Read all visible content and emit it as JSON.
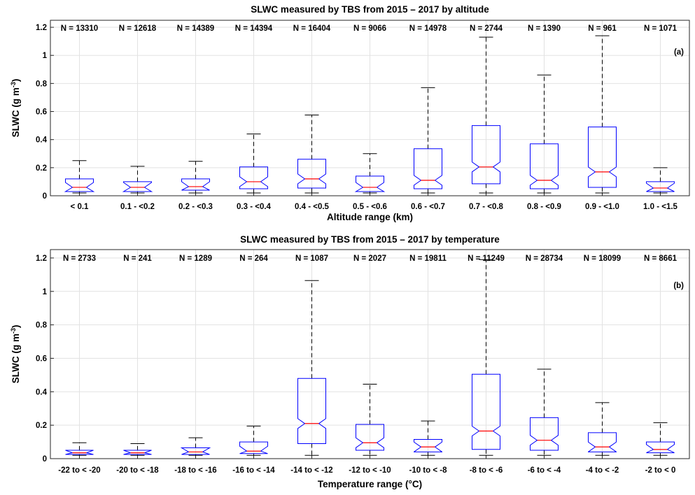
{
  "chart_data": [
    {
      "type": "box",
      "title": "SLWC measured by TBS from 2015 – 2017 by altitude",
      "xlabel": "Altitude range (km)",
      "ylabel": "SLWC (g m<sup>-3</sup>)",
      "ylabel_main": "SLWC (g m",
      "ylabel_sup": "-3",
      "ylabel_close": ")",
      "panel_label": "(a)",
      "ylim": [
        0,
        1.25
      ],
      "yticks": [
        0,
        0.2,
        0.4,
        0.6,
        0.8,
        1,
        1.2
      ],
      "ytick_labels": [
        "0",
        "0.2",
        "0.4",
        "0.6",
        "0.8",
        "1",
        "1.2"
      ],
      "grid": true,
      "categories": [
        "< 0.1",
        "0.1 - <0.2",
        "0.2 - <0.3",
        "0.3 - <0.4",
        "0.4 - <0.5",
        "0.5 - <0.6",
        "0.6 - <0.7",
        "0.7 - <0.8",
        "0.8 - <0.9",
        "0.9 - <1.0",
        "1.0 - <1.5"
      ],
      "n_labels": [
        "N = 13310",
        "N = 12618",
        "N = 14389",
        "N = 14394",
        "N = 16404",
        "N = 9066",
        "N = 14978",
        "N = 2744",
        "N = 1390",
        "N = 961",
        "N = 1071"
      ],
      "boxes": [
        {
          "whisker_low": 0.02,
          "q1": 0.03,
          "median": 0.06,
          "q3": 0.12,
          "whisker_high": 0.25
        },
        {
          "whisker_low": 0.02,
          "q1": 0.03,
          "median": 0.06,
          "q3": 0.1,
          "whisker_high": 0.21
        },
        {
          "whisker_low": 0.02,
          "q1": 0.04,
          "median": 0.065,
          "q3": 0.12,
          "whisker_high": 0.245
        },
        {
          "whisker_low": 0.02,
          "q1": 0.05,
          "median": 0.1,
          "q3": 0.205,
          "whisker_high": 0.44
        },
        {
          "whisker_low": 0.02,
          "q1": 0.055,
          "median": 0.12,
          "q3": 0.26,
          "whisker_high": 0.575
        },
        {
          "whisker_low": 0.02,
          "q1": 0.03,
          "median": 0.06,
          "q3": 0.14,
          "whisker_high": 0.3
        },
        {
          "whisker_low": 0.02,
          "q1": 0.05,
          "median": 0.11,
          "q3": 0.335,
          "whisker_high": 0.77
        },
        {
          "whisker_low": 0.02,
          "q1": 0.085,
          "median": 0.205,
          "q3": 0.5,
          "whisker_high": 1.13
        },
        {
          "whisker_low": 0.02,
          "q1": 0.05,
          "median": 0.11,
          "q3": 0.37,
          "whisker_high": 0.86
        },
        {
          "whisker_low": 0.02,
          "q1": 0.06,
          "median": 0.17,
          "q3": 0.49,
          "whisker_high": 1.14
        },
        {
          "whisker_low": 0.02,
          "q1": 0.03,
          "median": 0.055,
          "q3": 0.1,
          "whisker_high": 0.2
        }
      ],
      "colors": {
        "box": "#0000ff",
        "median": "#ff0000",
        "whisker": "#000000",
        "grid": "#e2e2e2"
      }
    },
    {
      "type": "box",
      "title": "SLWC measured by TBS from 2015 – 2017 by temperature",
      "xlabel": "Temperature range (°C)",
      "ylabel_main": "SLWC (g m",
      "ylabel_sup": "-3",
      "ylabel_close": ")",
      "panel_label": "(b)",
      "ylim": [
        0,
        1.25
      ],
      "yticks": [
        0,
        0.2,
        0.4,
        0.6,
        0.8,
        1,
        1.2
      ],
      "ytick_labels": [
        "0",
        "0.2",
        "0.4",
        "0.6",
        "0.8",
        "1",
        "1.2"
      ],
      "grid": true,
      "categories": [
        "-22 to < -20",
        "-20 to < -18",
        "-18 to < -16",
        "-16 to < -14",
        "-14 to < -12",
        "-12 to < -10",
        "-10 to < -8",
        "-8 to < -6",
        "-6 to < -4",
        "-4 to < -2",
        "-2 to < 0"
      ],
      "n_labels": [
        "N = 2733",
        "N = 241",
        "N = 1289",
        "N = 264",
        "N = 1087",
        "N = 2027",
        "N = 19811",
        "N = 11249",
        "N = 28734",
        "N = 18099",
        "N = 8661"
      ],
      "boxes": [
        {
          "whisker_low": 0.02,
          "q1": 0.025,
          "median": 0.035,
          "q3": 0.05,
          "whisker_high": 0.095
        },
        {
          "whisker_low": 0.02,
          "q1": 0.025,
          "median": 0.035,
          "q3": 0.05,
          "whisker_high": 0.09
        },
        {
          "whisker_low": 0.02,
          "q1": 0.025,
          "median": 0.04,
          "q3": 0.065,
          "whisker_high": 0.125
        },
        {
          "whisker_low": 0.02,
          "q1": 0.03,
          "median": 0.045,
          "q3": 0.1,
          "whisker_high": 0.195
        },
        {
          "whisker_low": 0.02,
          "q1": 0.09,
          "median": 0.21,
          "q3": 0.48,
          "whisker_high": 1.065
        },
        {
          "whisker_low": 0.02,
          "q1": 0.05,
          "median": 0.095,
          "q3": 0.205,
          "whisker_high": 0.445
        },
        {
          "whisker_low": 0.02,
          "q1": 0.04,
          "median": 0.07,
          "q3": 0.115,
          "whisker_high": 0.225
        },
        {
          "whisker_low": 0.02,
          "q1": 0.055,
          "median": 0.165,
          "q3": 0.505,
          "whisker_high": 1.19
        },
        {
          "whisker_low": 0.02,
          "q1": 0.05,
          "median": 0.11,
          "q3": 0.245,
          "whisker_high": 0.535
        },
        {
          "whisker_low": 0.02,
          "q1": 0.04,
          "median": 0.07,
          "q3": 0.155,
          "whisker_high": 0.335
        },
        {
          "whisker_low": 0.02,
          "q1": 0.035,
          "median": 0.055,
          "q3": 0.1,
          "whisker_high": 0.215
        }
      ],
      "colors": {
        "box": "#0000ff",
        "median": "#ff0000",
        "whisker": "#000000",
        "grid": "#e2e2e2"
      }
    }
  ]
}
